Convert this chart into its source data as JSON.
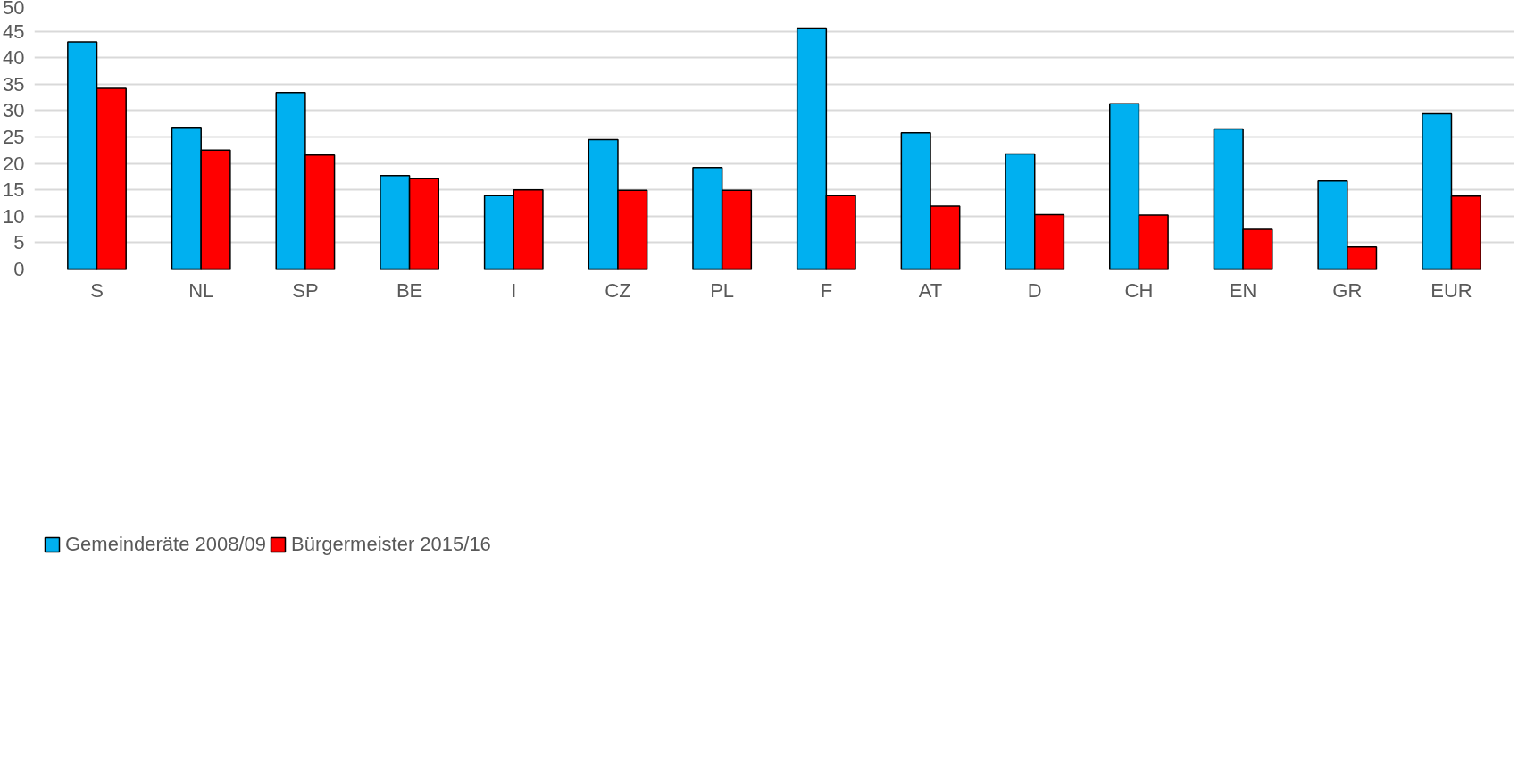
{
  "chart_data": {
    "type": "bar",
    "categories": [
      "S",
      "NL",
      "SP",
      "BE",
      "I",
      "CZ",
      "PL",
      "F",
      "AT",
      "D",
      "CH",
      "EN",
      "GR",
      "EUR"
    ],
    "series": [
      {
        "name": "Gemeinderäte 2008/09",
        "color": "#00b0f0",
        "values": [
          43.0,
          26.8,
          33.4,
          17.7,
          13.9,
          24.5,
          19.2,
          45.6,
          25.8,
          21.8,
          31.3,
          26.5,
          16.7,
          29.4
        ]
      },
      {
        "name": "Bürgermeister 2015/16",
        "color": "#ff0000",
        "values": [
          34.2,
          22.5,
          21.6,
          17.1,
          15.0,
          14.9,
          14.9,
          13.9,
          11.9,
          10.3,
          10.2,
          7.5,
          4.2,
          13.8
        ]
      }
    ],
    "ylim": [
      0,
      50
    ],
    "yticks": [
      0,
      5,
      10,
      15,
      20,
      25,
      30,
      35,
      40,
      45,
      50
    ],
    "grid": "y",
    "legend": "bottom left"
  }
}
